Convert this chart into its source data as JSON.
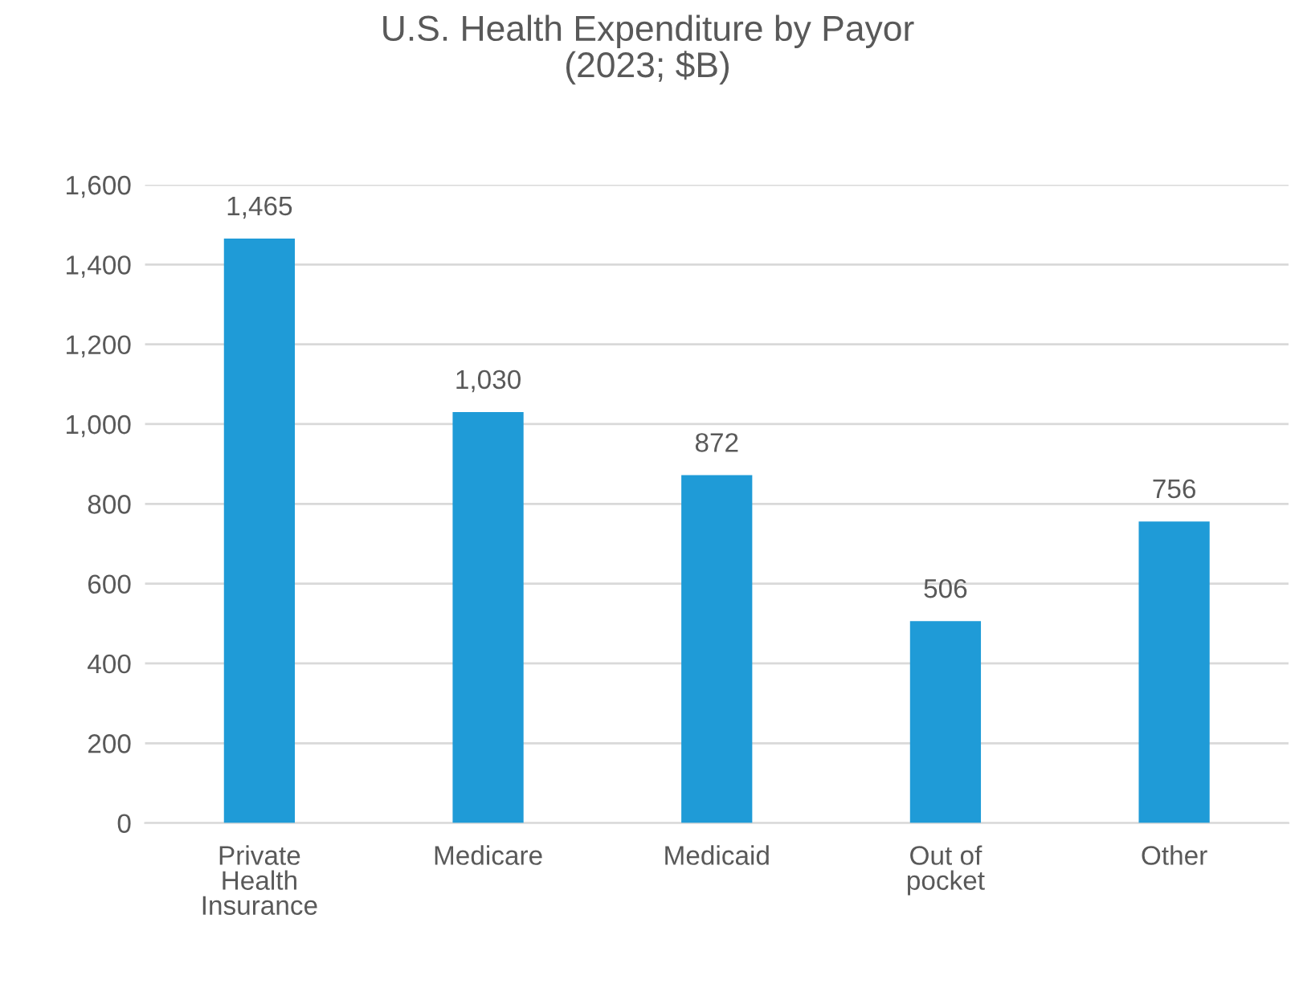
{
  "chart_data": {
    "type": "bar",
    "title": "U.S. Health Expenditure by Payor\n(2023; $B)",
    "categories": [
      "Private\nHealth\nInsurance",
      "Medicare",
      "Medicaid",
      "Out of\npocket",
      "Other"
    ],
    "values": [
      1465,
      1030,
      872,
      506,
      756
    ],
    "color": "#1f9bd7",
    "ylim": [
      0,
      1600
    ],
    "yticks": [
      {
        "value": 0,
        "label": "0"
      },
      {
        "value": 200,
        "label": "200"
      },
      {
        "value": 400,
        "label": "400"
      },
      {
        "value": 600,
        "label": "600"
      },
      {
        "value": 800,
        "label": "800"
      },
      {
        "value": 1000,
        "label": "1,000"
      },
      {
        "value": 1200,
        "label": "1,200"
      },
      {
        "value": 1400,
        "label": "1,400"
      },
      {
        "value": 1600,
        "label": "1,600"
      }
    ],
    "value_labels": [
      "1,465",
      "1,030",
      "872",
      "506",
      "756"
    ],
    "grid": "y"
  }
}
